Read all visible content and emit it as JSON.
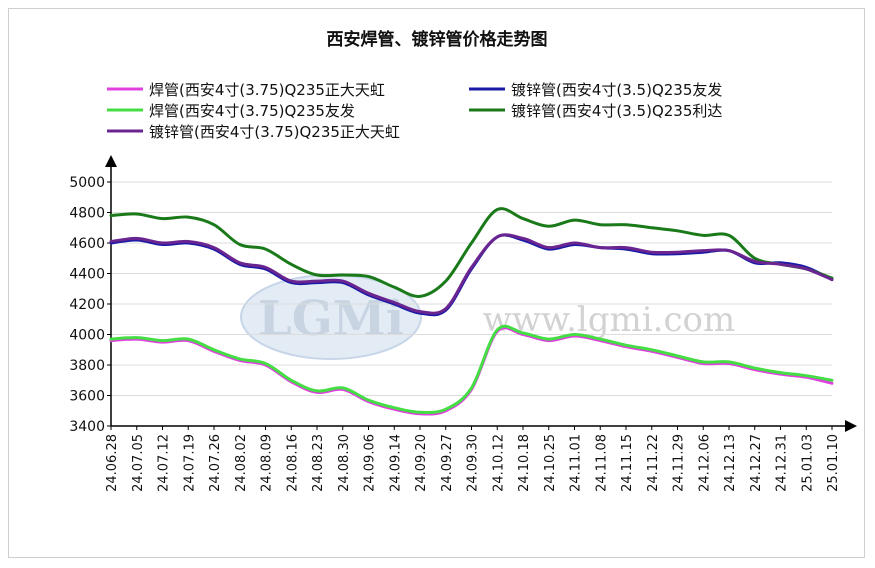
{
  "chart_data": {
    "type": "line",
    "title": "西安焊管、镀锌管价格走势图",
    "watermark": {
      "logo_text": "LGMi",
      "site_text": "www.lgmi.com"
    },
    "categories": [
      "24.06.28",
      "24.07.05",
      "24.07.12",
      "24.07.19",
      "24.07.26",
      "24.08.02",
      "24.08.09",
      "24.08.16",
      "24.08.23",
      "24.08.30",
      "24.09.06",
      "24.09.14",
      "24.09.20",
      "24.09.27",
      "24.09.30",
      "24.10.12",
      "24.10.18",
      "24.10.25",
      "24.11.01",
      "24.11.08",
      "24.11.15",
      "24.11.22",
      "24.11.29",
      "24.12.06",
      "24.12.13",
      "24.12.27",
      "24.12.31",
      "25.01.03",
      "25.01.10"
    ],
    "ylim": [
      3400,
      5000
    ],
    "yticks": [
      3400,
      3600,
      3800,
      4000,
      4200,
      4400,
      4600,
      4800,
      5000
    ],
    "legend_position": "top",
    "series": [
      {
        "name": "焊管(西安4寸(3.75)Q235正大天虹",
        "color": "#e040e0",
        "values": [
          3960,
          3970,
          3950,
          3960,
          3890,
          3830,
          3800,
          3690,
          3620,
          3640,
          3560,
          3510,
          3480,
          3500,
          3640,
          4020,
          4000,
          3960,
          3990,
          3960,
          3920,
          3890,
          3850,
          3810,
          3810,
          3770,
          3740,
          3720,
          3680
        ]
      },
      {
        "name": "镀锌管(西安4寸(3.5)Q235友发",
        "color": "#1a1aa6",
        "values": [
          4600,
          4620,
          4590,
          4600,
          4560,
          4460,
          4430,
          4340,
          4340,
          4340,
          4260,
          4200,
          4140,
          4160,
          4430,
          4640,
          4620,
          4560,
          4590,
          4570,
          4560,
          4530,
          4530,
          4540,
          4550,
          4470,
          4470,
          4440,
          4360
        ]
      },
      {
        "name": "焊管(西安4寸(3.75)Q235友发",
        "color": "#44dd44",
        "values": [
          3970,
          3980,
          3960,
          3970,
          3900,
          3840,
          3810,
          3700,
          3630,
          3650,
          3570,
          3520,
          3490,
          3510,
          3650,
          4030,
          4010,
          3970,
          4000,
          3970,
          3930,
          3900,
          3860,
          3820,
          3820,
          3780,
          3750,
          3730,
          3700
        ]
      },
      {
        "name": "镀锌管(西安4寸(3.5)Q235利达",
        "color": "#1a7a1a",
        "values": [
          4780,
          4790,
          4760,
          4770,
          4720,
          4590,
          4560,
          4460,
          4390,
          4390,
          4380,
          4310,
          4250,
          4350,
          4600,
          4820,
          4760,
          4710,
          4750,
          4720,
          4720,
          4700,
          4680,
          4650,
          4650,
          4500,
          4460,
          4430,
          4370
        ]
      },
      {
        "name": "镀锌管(西安4寸(3.75)Q235正大天虹",
        "color": "#6a2590",
        "values": [
          4610,
          4630,
          4600,
          4610,
          4570,
          4470,
          4440,
          4350,
          4350,
          4350,
          4270,
          4210,
          4150,
          4170,
          4440,
          4640,
          4630,
          4570,
          4600,
          4570,
          4570,
          4540,
          4540,
          4550,
          4550,
          4480,
          4460,
          4430,
          4360
        ]
      }
    ]
  }
}
